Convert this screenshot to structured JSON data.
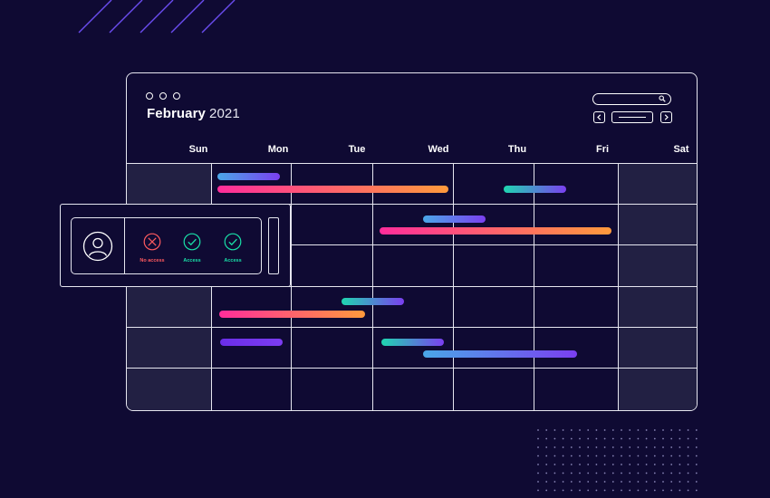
{
  "calendar": {
    "title_month": "February",
    "title_year": "2021",
    "days": [
      "Sun",
      "Mon",
      "Tue",
      "Wed",
      "Thu",
      "Fri",
      "Sat"
    ]
  },
  "toolbar": {
    "search_icon": "search-icon",
    "prev_icon": "chevron-left-icon",
    "next_icon": "chevron-right-icon"
  },
  "access_panel": {
    "avatar_icon": "user-avatar-icon",
    "permissions": [
      {
        "label": "No access",
        "status": "denied",
        "icon": "x-circle-icon",
        "color": "#ff5a5f"
      },
      {
        "label": "Access",
        "status": "granted",
        "icon": "check-circle-icon",
        "color": "#19e0a8"
      },
      {
        "label": "Access",
        "status": "granted",
        "icon": "check-circle-icon",
        "color": "#19e0a8"
      }
    ]
  },
  "colors": {
    "background": "#0f0a33",
    "weekend_shade": "#222043",
    "grid_line": "#e6e6f0",
    "denied": "#ff5a5f",
    "granted": "#19e0a8"
  }
}
